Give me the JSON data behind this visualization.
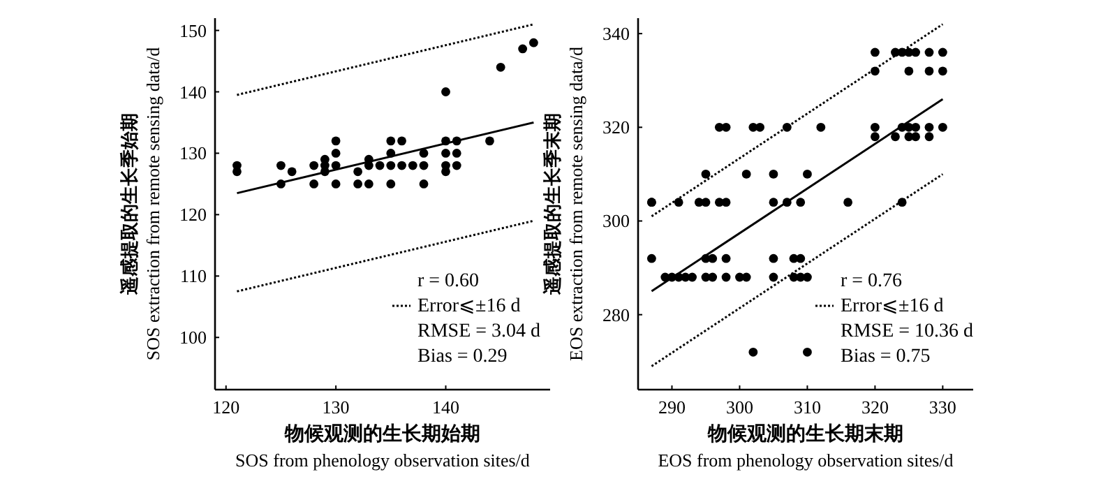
{
  "chart_data": [
    {
      "type": "scatter",
      "xlabel": "物候观测的生长期始期\nSOS from phenology observation sites/d",
      "ylabel": "遥感提取的生长季始期\nSOS extraction from remote sensing data/d",
      "xlim": [
        119,
        149.5
      ],
      "ylim": [
        91.5,
        152
      ],
      "xticks": [
        120,
        130,
        140
      ],
      "yticks": [
        100,
        110,
        120,
        130,
        140,
        150
      ],
      "marker": "circle",
      "legend": "bottom right",
      "annotations": [
        "r = 0.60",
        "RMSE =  3.04 d",
        "Bias = 0.29"
      ],
      "series": [
        {
          "type": "scatter",
          "color": "#000000",
          "x": [
            121,
            121,
            125,
            125,
            126,
            128,
            128,
            129,
            129,
            129,
            130,
            130,
            130,
            130,
            132,
            132,
            133,
            133,
            133,
            134,
            135,
            135,
            135,
            135,
            136,
            136,
            137,
            138,
            138,
            138,
            140,
            140,
            140,
            140,
            140,
            141,
            141,
            141,
            144,
            145,
            147,
            148
          ],
          "values": [
            127,
            128,
            128,
            125,
            127,
            128,
            125,
            129,
            128,
            127,
            132,
            130,
            128,
            125,
            127,
            125,
            129,
            128,
            125,
            128,
            132,
            130,
            128,
            125,
            132,
            128,
            128,
            130,
            128,
            125,
            140,
            132,
            130,
            128,
            127,
            132,
            130,
            128,
            132,
            144,
            147,
            148
          ]
        },
        {
          "type": "line",
          "color": "#000000",
          "marker": "none",
          "line_style": "solid",
          "x": [
            121,
            148
          ],
          "values": [
            123.5,
            135
          ]
        },
        {
          "type": "line",
          "name": "Error⩽±16 d",
          "color": "#000000",
          "marker": "none",
          "line_style": "dotted",
          "x": [
            121,
            148
          ],
          "values": [
            139.5,
            151
          ]
        },
        {
          "type": "line",
          "color": "#000000",
          "marker": "none",
          "line_style": "dotted",
          "x": [
            121,
            148
          ],
          "values": [
            107.5,
            119
          ]
        }
      ]
    },
    {
      "type": "scatter",
      "xlabel": "物候观测的生长期末期\nEOS from phenology observation sites/d",
      "ylabel": "遥感提取的生长季末期\nEOS extraction from remote sensing data/d",
      "xlim": [
        285,
        334.5
      ],
      "ylim": [
        264,
        343.3
      ],
      "xticks": [
        290,
        300,
        310,
        320,
        330
      ],
      "yticks": [
        280,
        300,
        320,
        340
      ],
      "marker": "circle",
      "legend": "bottom right",
      "annotations": [
        "r = 0.76",
        "RMSE =  10.36 d",
        "Bias = 0.75"
      ],
      "series": [
        {
          "type": "scatter",
          "color": "#000000",
          "x": [
            287,
            289,
            290,
            291,
            292,
            293,
            295,
            296,
            298,
            300,
            301,
            305,
            308,
            309,
            310,
            287,
            295,
            296,
            298,
            305,
            308,
            309,
            287,
            291,
            294,
            295,
            297,
            298,
            305,
            307,
            309,
            316,
            324,
            295,
            301,
            305,
            310,
            297,
            298,
            302,
            303,
            307,
            312,
            320,
            324,
            325,
            326,
            328,
            330,
            320,
            323,
            325,
            326,
            328,
            320,
            325,
            328,
            330,
            320,
            323,
            324,
            325,
            326,
            328,
            330,
            302,
            310
          ],
          "values": [
            292,
            288,
            288,
            288,
            288,
            288,
            288,
            288,
            288,
            288,
            288,
            288,
            288,
            288,
            288,
            304,
            292,
            292,
            292,
            292,
            292,
            292,
            304,
            304,
            304,
            304,
            304,
            304,
            304,
            304,
            304,
            304,
            304,
            310,
            310,
            310,
            310,
            320,
            320,
            320,
            320,
            320,
            320,
            320,
            320,
            320,
            320,
            320,
            320,
            318,
            318,
            318,
            318,
            318,
            332,
            332,
            332,
            332,
            336,
            336,
            336,
            336,
            336,
            336,
            336,
            272,
            272
          ]
        },
        {
          "type": "line",
          "color": "#000000",
          "marker": "none",
          "line_style": "solid",
          "x": [
            287,
            330
          ],
          "values": [
            285,
            326
          ]
        },
        {
          "type": "line",
          "name": "Error⩽±16 d",
          "color": "#000000",
          "marker": "none",
          "line_style": "dotted",
          "x": [
            287,
            330
          ],
          "values": [
            301,
            342
          ]
        },
        {
          "type": "line",
          "color": "#000000",
          "marker": "none",
          "line_style": "dotted",
          "x": [
            287,
            330
          ],
          "values": [
            269,
            310
          ]
        }
      ]
    }
  ]
}
